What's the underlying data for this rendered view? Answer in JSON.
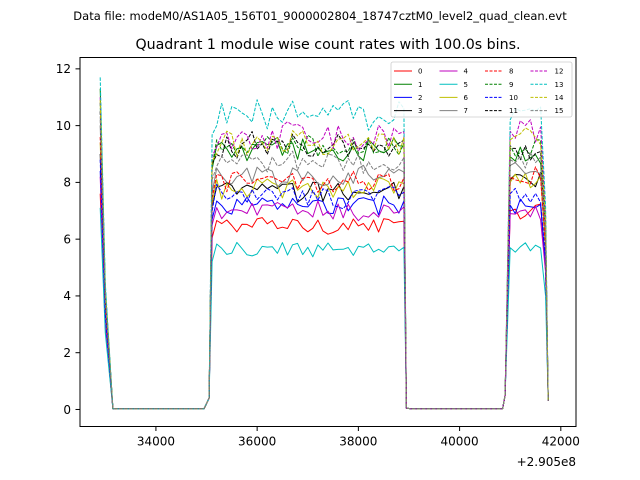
{
  "figure": {
    "suptitle": "Data file: modeM0/AS1A05_156T01_9000002804_18747cztM0_level2_quad_clean.evt"
  },
  "chart_data": {
    "type": "line",
    "title": "Quadrant 1 module wise count rates with 100.0s bins.",
    "xlabel": "",
    "ylabel": "",
    "x_offset_label": "+2.905e8",
    "xlim": [
      32500,
      42300
    ],
    "ylim": [
      -0.6,
      12.4
    ],
    "x_ticks": [
      34000,
      36000,
      38000,
      40000,
      42000
    ],
    "x_tick_labels": [
      "34000",
      "36000",
      "38000",
      "40000",
      "42000"
    ],
    "y_ticks": [
      0,
      2,
      4,
      6,
      8,
      10,
      12
    ],
    "y_tick_labels": [
      "0",
      "2",
      "4",
      "6",
      "8",
      "10",
      "12"
    ],
    "grid": false,
    "legend_position": "top-right",
    "legend_columns": 4,
    "segments": [
      {
        "x_start": 32900,
        "x_end": 33150,
        "gap_after_end": 35000
      },
      {
        "x_start": 35050,
        "x_end": 38950,
        "gap_after_end": 40850
      },
      {
        "x_start": 40900,
        "x_end": 41750
      }
    ],
    "series": [
      {
        "name": "0",
        "color": "#ff0000",
        "dashed": false,
        "level": 6.5,
        "first_point": 7.6,
        "segment3_level": 7.0
      },
      {
        "name": "1",
        "color": "#008000",
        "dashed": false,
        "level": 9.1,
        "first_point": 11.3,
        "segment3_level": 8.9
      },
      {
        "name": "2",
        "color": "#0000ff",
        "dashed": false,
        "level": 7.2,
        "first_point": 8.4,
        "segment3_level": 7.2
      },
      {
        "name": "3",
        "color": "#000000",
        "dashed": false,
        "level": 7.7,
        "first_point": 9.0,
        "segment3_level": 8.1
      },
      {
        "name": "4",
        "color": "#bf00bf",
        "dashed": false,
        "level": 7.0,
        "first_point": 8.2,
        "segment3_level": 6.9
      },
      {
        "name": "5",
        "color": "#00bfbf",
        "dashed": false,
        "level": 5.6,
        "first_point": 7.1,
        "segment3_level": 5.7
      },
      {
        "name": "6",
        "color": "#bfbf00",
        "dashed": false,
        "level": 7.8,
        "first_point": 9.4,
        "segment3_level": 8.0
      },
      {
        "name": "7",
        "color": "#808080",
        "dashed": false,
        "level": 8.2,
        "first_point": 10.0,
        "segment3_level": 8.6
      },
      {
        "name": "8",
        "color": "#ff0000",
        "dashed": true,
        "level": 8.0,
        "first_point": 9.6,
        "segment3_level": 8.2
      },
      {
        "name": "9",
        "color": "#008000",
        "dashed": true,
        "level": 9.2,
        "first_point": 10.8,
        "segment3_level": 9.3
      },
      {
        "name": "10",
        "color": "#0000ff",
        "dashed": true,
        "level": 7.5,
        "first_point": 8.8,
        "segment3_level": 7.6
      },
      {
        "name": "11",
        "color": "#000000",
        "dashed": true,
        "level": 9.3,
        "first_point": 10.5,
        "segment3_level": 9.2
      },
      {
        "name": "12",
        "color": "#bf00bf",
        "dashed": true,
        "level": 9.6,
        "first_point": 11.0,
        "segment3_level": 9.8
      },
      {
        "name": "13",
        "color": "#00bfbf",
        "dashed": true,
        "level": 10.4,
        "first_point": 11.7,
        "segment3_level": 10.2
      },
      {
        "name": "14",
        "color": "#bfbf00",
        "dashed": true,
        "level": 9.4,
        "first_point": 10.9,
        "segment3_level": 9.5
      },
      {
        "name": "15",
        "color": "#808080",
        "dashed": true,
        "level": 8.7,
        "first_point": 10.2,
        "segment3_level": 8.8
      }
    ]
  }
}
